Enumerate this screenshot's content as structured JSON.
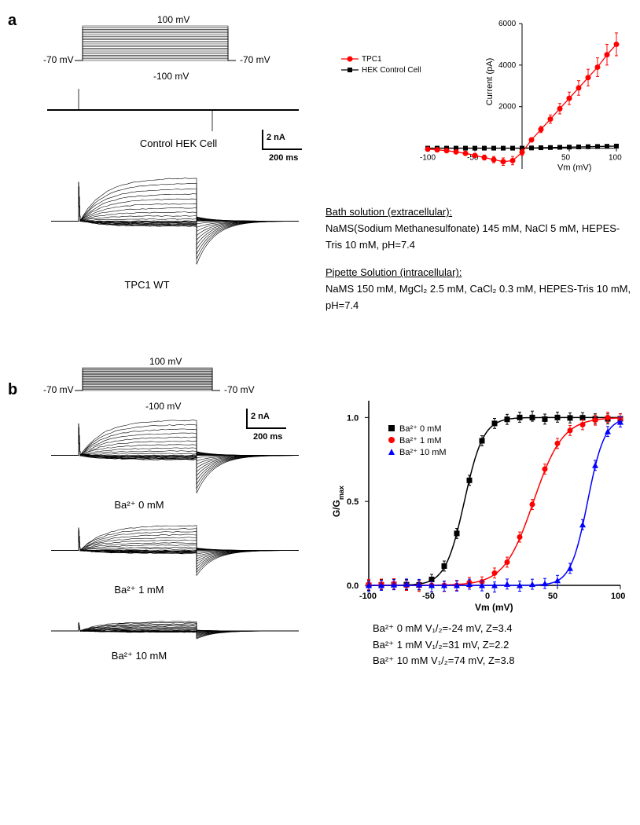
{
  "panel_a": {
    "label": "a",
    "protocol": {
      "top_label": "100 mV",
      "bottom_label": "-100 mV",
      "left_label": "-70 mV",
      "right_label": "-70 mV",
      "color": "#000000",
      "n_steps": 21
    },
    "traces_control": {
      "label": "Control HEK Cell",
      "color": "#000000"
    },
    "traces_tpc1": {
      "label": "TPC1 WT",
      "color": "#000000"
    },
    "scalebar": {
      "v_label": "2 nA",
      "h_label": "200 ms"
    },
    "iv_chart": {
      "legend": [
        {
          "label": "TPC1",
          "color": "#ff0000",
          "marker": "circle"
        },
        {
          "label": "HEK Control Cell",
          "color": "#000000",
          "marker": "square"
        }
      ],
      "xlabel": "Vm (mV)",
      "ylabel": "Current (pA)",
      "xlim": [
        -100,
        100
      ],
      "xtick_step": 50,
      "ylim": [
        -1000,
        6000
      ],
      "ytick_step": 2000,
      "yticks": [
        0,
        2000,
        4000,
        6000
      ],
      "series_tpc1": {
        "color": "#ff0000",
        "x": [
          -100,
          -90,
          -80,
          -70,
          -60,
          -50,
          -40,
          -30,
          -20,
          -10,
          0,
          10,
          20,
          30,
          40,
          50,
          60,
          70,
          80,
          90,
          100
        ],
        "y": [
          -50,
          -80,
          -120,
          -180,
          -250,
          -350,
          -450,
          -550,
          -650,
          -600,
          -200,
          400,
          900,
          1400,
          1900,
          2400,
          2900,
          3400,
          3900,
          4500,
          5000
        ],
        "err": [
          50,
          60,
          70,
          80,
          90,
          100,
          120,
          150,
          180,
          200,
          150,
          100,
          150,
          200,
          250,
          300,
          350,
          400,
          450,
          500,
          550
        ]
      },
      "series_hek": {
        "color": "#000000",
        "x": [
          -100,
          -90,
          -80,
          -70,
          -60,
          -50,
          -40,
          -30,
          -20,
          -10,
          0,
          10,
          20,
          30,
          40,
          50,
          60,
          70,
          80,
          90,
          100
        ],
        "y": [
          0,
          0,
          0,
          0,
          0,
          0,
          0,
          0,
          0,
          0,
          0,
          10,
          20,
          30,
          40,
          50,
          60,
          70,
          80,
          90,
          100
        ],
        "err": [
          20,
          20,
          20,
          20,
          20,
          20,
          20,
          20,
          20,
          20,
          20,
          20,
          20,
          20,
          20,
          20,
          20,
          20,
          20,
          20,
          20
        ]
      }
    },
    "bath_header": "Bath solution (extracellular):",
    "bath_text": "NaMS(Sodium Methanesulfonate) 145 mM, NaCl 5 mM, HEPES-Tris 10 mM, pH=7.4",
    "pipette_header": "Pipette Solution (intracellular):",
    "pipette_text": "NaMS 150 mM, MgCl₂ 2.5 mM, CaCl₂ 0.3 mM, HEPES-Tris 10 mM, pH=7.4"
  },
  "panel_b": {
    "label": "b",
    "protocol": {
      "top_label": "100 mV",
      "bottom_label": "-100 mV",
      "left_label": "-70 mV",
      "right_label": "-70 mV"
    },
    "scalebar": {
      "v_label": "2 nA",
      "h_label": "200 ms"
    },
    "traces": [
      {
        "label": "Ba²⁺ 0 mM"
      },
      {
        "label": "Ba²⁺ 1 mM"
      },
      {
        "label": "Ba²⁺ 10 mM"
      }
    ],
    "gv_chart": {
      "xlabel": "Vm (mV)",
      "ylabel": "G/Gmax",
      "xlim": [
        -100,
        100
      ],
      "xtick_step": 50,
      "ylim": [
        0,
        1.1
      ],
      "yticks": [
        0,
        0.5,
        1.0
      ],
      "legend": [
        {
          "label": "Ba²⁺  0 mM",
          "color": "#000000",
          "marker": "square"
        },
        {
          "label": "Ba²⁺  1 mM",
          "color": "#ff0000",
          "marker": "circle"
        },
        {
          "label": "Ba²⁺ 10 mM",
          "color": "#0000ff",
          "marker": "triangle"
        }
      ],
      "curves": {
        "ba0": {
          "color": "#000000",
          "v50": -24,
          "z": 3.4
        },
        "ba1": {
          "color": "#ff0000",
          "v50": 31,
          "z": 2.2
        },
        "ba10": {
          "color": "#0000ff",
          "v50": 74,
          "z": 3.8
        }
      },
      "x": [
        -100,
        -90,
        -80,
        -70,
        -60,
        -50,
        -40,
        -30,
        -20,
        -10,
        0,
        10,
        20,
        30,
        40,
        50,
        60,
        70,
        80,
        90,
        100
      ]
    },
    "fit_lines": [
      "Ba²⁺  0 mM   V₁/₂=-24 mV,  Z=3.4",
      "Ba²⁺  1 mM   V₁/₂=31 mV,  Z=2.2",
      "Ba²⁺  10 mM  V₁/₂=74 mV,  Z=3.8"
    ]
  }
}
